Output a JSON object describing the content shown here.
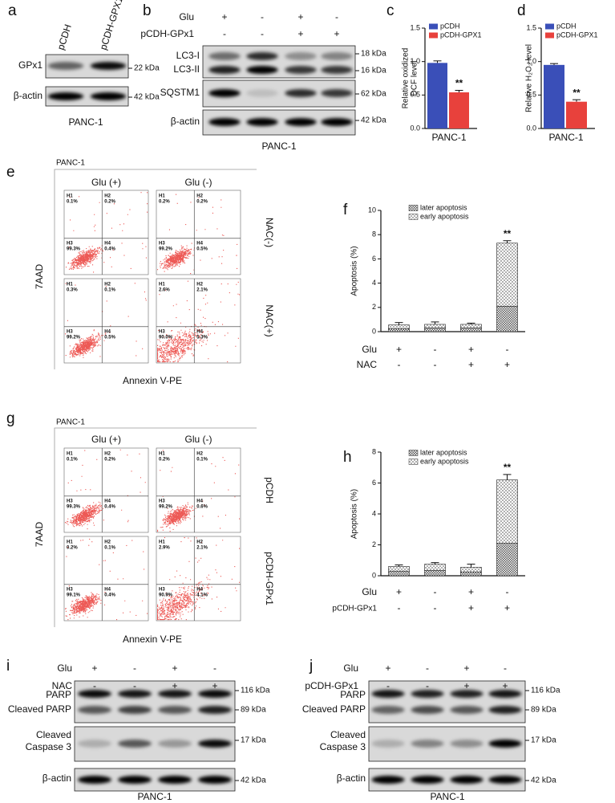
{
  "panel_labels": [
    "a",
    "b",
    "c",
    "d",
    "e",
    "f",
    "g",
    "h",
    "i",
    "j"
  ],
  "blots": {
    "a": {
      "lanes": [
        "pCDH",
        "pCDH-GPX1"
      ],
      "bands": [
        "GPx1",
        "β-actin"
      ],
      "markers": [
        "22 kDa",
        "42 kDa"
      ],
      "cell_line": "PANC-1"
    },
    "b": {
      "conditions": [
        {
          "label": "Glu",
          "values": [
            "+",
            "-",
            "+",
            "-"
          ]
        },
        {
          "label": "pCDH-GPx1",
          "values": [
            "-",
            "-",
            "+",
            "+"
          ]
        }
      ],
      "bands": [
        "LC3-I",
        "LC3-II",
        "SQSTM1",
        "β-actin"
      ],
      "markers": [
        "18 kDa",
        "16 kDa",
        "62 kDa",
        "42 kDa"
      ],
      "cell_line": "PANC-1"
    },
    "i": {
      "conditions": [
        {
          "label": "Glu",
          "values": [
            "+",
            "-",
            "+",
            "-"
          ]
        },
        {
          "label": "NAC",
          "values": [
            "-",
            "-",
            "+",
            "+"
          ]
        }
      ],
      "bands": [
        "PARP",
        "Cleaved PARP",
        "Cleaved",
        "Caspase 3",
        "β-actin"
      ],
      "markers": [
        "116 kDa",
        "89 kDa",
        "17 kDa",
        "42 kDa"
      ],
      "cell_line": "PANC-1"
    },
    "j": {
      "conditions": [
        {
          "label": "Glu",
          "values": [
            "+",
            "-",
            "+",
            "-"
          ]
        },
        {
          "label": "pCDH-GPx1",
          "values": [
            "-",
            "-",
            "+",
            "+"
          ]
        }
      ],
      "bands": [
        "PARP",
        "Cleaved PARP",
        "Cleaved",
        "Caspase 3",
        "β-actin"
      ],
      "markers": [
        "116 kDa",
        "89 kDa",
        "17 kDa",
        "42 kDa"
      ],
      "cell_line": "PANC-1"
    }
  },
  "flow": {
    "e": {
      "cell_line": "PANC-1",
      "columns": [
        "Glu (+)",
        "Glu (-)"
      ],
      "rows": [
        "NAC(-)",
        "NAC(+)"
      ],
      "ylabel": "7AAD",
      "xlabel": "Annexin V-PE",
      "quadrant_names": [
        "H1",
        "H2",
        "H3",
        "H4"
      ],
      "plots": [
        [
          "0.1%",
          "0.2%",
          "99.3%",
          "0.4%"
        ],
        [
          "0.2%",
          "0.2%",
          "99.2%",
          "0.5%"
        ],
        [
          "0.3%",
          "0.1%",
          "99.2%",
          "0.5%"
        ],
        [
          "2.6%",
          "2.1%",
          "90.0%",
          "5.3%"
        ]
      ]
    },
    "g": {
      "cell_line": "PANC-1",
      "columns": [
        "Glu (+)",
        "Glu (-)"
      ],
      "rows": [
        "pCDH",
        "pCDH-GPx1"
      ],
      "ylabel": "7AAD",
      "xlabel": "Annexin V-PE",
      "quadrant_names": [
        "H1",
        "H2",
        "H3",
        "H4"
      ],
      "plots": [
        [
          "0.1%",
          "0.2%",
          "99.3%",
          "0.4%"
        ],
        [
          "0.2%",
          "0.1%",
          "99.2%",
          "0.6%"
        ],
        [
          "0.2%",
          "0.1%",
          "99.1%",
          "0.4%"
        ],
        [
          "2.9%",
          "2.1%",
          "90.9%",
          "4.1%"
        ]
      ]
    }
  },
  "chart_data": [
    {
      "type": "bar",
      "ylabel": [
        "Relative oxidized",
        "DCF level"
      ],
      "categories": [
        "PANC-1"
      ],
      "series": [
        {
          "name": "pCDH",
          "color": "#3a4fb8",
          "values": [
            0.98
          ],
          "errors": [
            0.03
          ]
        },
        {
          "name": "pCDH-GPX1",
          "color": "#e8413c",
          "values": [
            0.54
          ],
          "errors": [
            0.03
          ]
        }
      ],
      "ylim": [
        0,
        1.5
      ],
      "yticks": [
        {
          "value": 0,
          "label": "0.0"
        },
        0.5,
        {
          "value": 1,
          "label": "1.0"
        },
        1.5
      ],
      "annotations": [
        {
          "text": "**",
          "series": 1,
          "index": 0
        }
      ]
    },
    {
      "type": "bar",
      "ylabel": [
        "Relative H₂O₂ level"
      ],
      "categories": [
        "PANC-1"
      ],
      "series": [
        {
          "name": "pCDH",
          "color": "#3a4fb8",
          "values": [
            0.95
          ],
          "errors": [
            0.02
          ]
        },
        {
          "name": "pCDH-GPX1",
          "color": "#e8413c",
          "values": [
            0.4
          ],
          "errors": [
            0.03
          ]
        }
      ],
      "ylim": [
        0,
        1.5
      ],
      "yticks": [
        {
          "value": 0,
          "label": "0.0"
        },
        0.5,
        {
          "value": 1,
          "label": "1.0"
        },
        1.5
      ],
      "annotations": [
        {
          "text": "**",
          "series": 1,
          "index": 0
        }
      ]
    },
    {
      "type": "stacked_bar",
      "ylabel": [
        "Apoptosis (%)"
      ],
      "conditions": [
        {
          "label": "Glu",
          "values": [
            "+",
            "-",
            "+",
            "-"
          ]
        },
        {
          "label": "NAC",
          "values": [
            "-",
            "-",
            "+",
            "+"
          ]
        }
      ],
      "series": [
        {
          "name": "later apoptosis",
          "color": "#555555",
          "values": [
            0.25,
            0.3,
            0.3,
            2.1
          ],
          "errors": [
            0.05,
            0.05,
            0.05,
            0.15
          ]
        },
        {
          "name": "early apoptosis",
          "color": "#b0b0b0",
          "values": [
            0.3,
            0.3,
            0.3,
            5.2
          ],
          "errors": [
            0.2,
            0.2,
            0.1,
            0.2
          ]
        }
      ],
      "ylim": [
        0,
        10
      ],
      "yticks": [
        0,
        2,
        4,
        6,
        8,
        10
      ],
      "annotations": [
        {
          "text": "**",
          "index": 3
        }
      ]
    },
    {
      "type": "stacked_bar",
      "ylabel": [
        "Apoptosis (%)"
      ],
      "conditions": [
        {
          "label": "Glu",
          "values": [
            "+",
            "-",
            "+",
            "-"
          ]
        },
        {
          "label": "pCDH-GPx1",
          "values": [
            "-",
            "-",
            "+",
            "+"
          ]
        }
      ],
      "series": [
        {
          "name": "later apoptosis",
          "color": "#555555",
          "values": [
            0.3,
            0.35,
            0.25,
            2.1
          ],
          "errors": [
            0.05,
            0.05,
            0.05,
            0.15
          ]
        },
        {
          "name": "early apoptosis",
          "color": "#b0b0b0",
          "values": [
            0.3,
            0.4,
            0.3,
            4.1
          ],
          "errors": [
            0.1,
            0.1,
            0.2,
            0.35
          ]
        }
      ],
      "ylim": [
        0,
        8
      ],
      "yticks": [
        0,
        2,
        4,
        6,
        8
      ],
      "annotations": [
        {
          "text": "**",
          "index": 3
        }
      ]
    }
  ]
}
